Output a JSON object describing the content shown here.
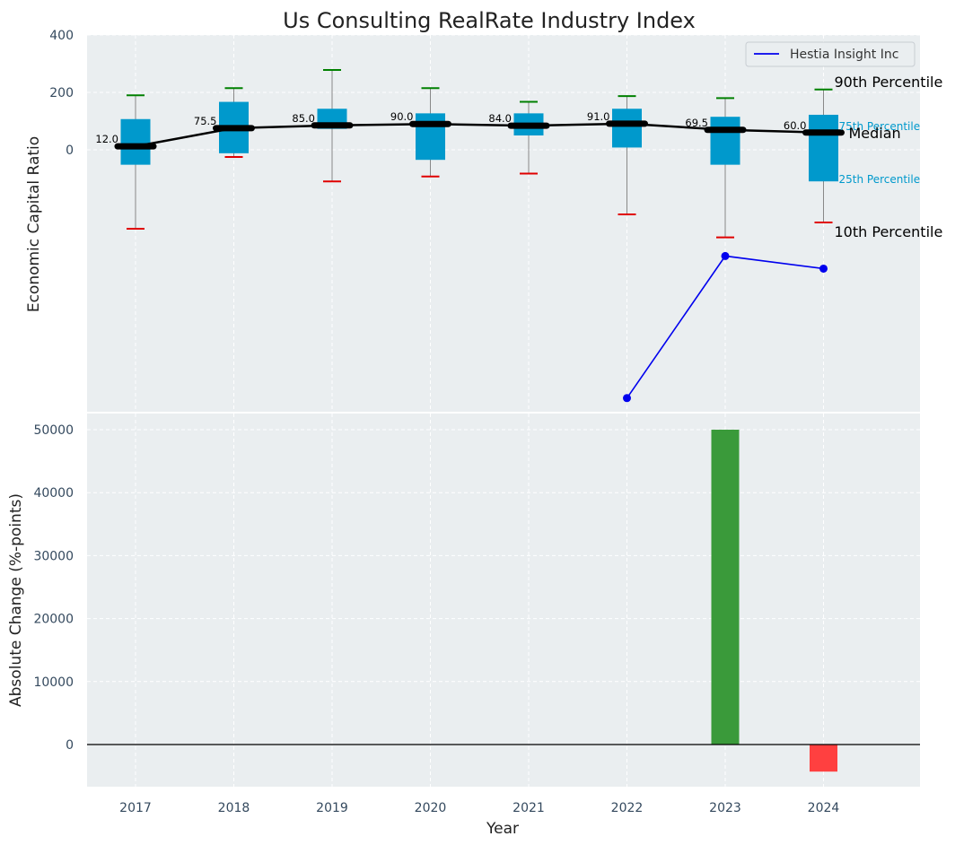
{
  "chart_data": {
    "title": "Us Consulting RealRate Industry Index",
    "xlabel": "Year",
    "categories": [
      "2017",
      "2018",
      "2019",
      "2020",
      "2021",
      "2022",
      "2023",
      "2024"
    ],
    "top_panel": {
      "type": "box",
      "ylabel": "Economic Capital Ratio",
      "yticks": [
        "400",
        "200",
        "0"
      ],
      "grid": true,
      "percentiles": [
        {
          "year": "2017",
          "p10": -275,
          "p25": -52,
          "median": 12.0,
          "p75": 107,
          "p90": 190
        },
        {
          "year": "2018",
          "p10": -25,
          "p25": -12,
          "median": 75.5,
          "p75": 167,
          "p90": 215
        },
        {
          "year": "2019",
          "p10": -110,
          "p25": 73,
          "median": 85.0,
          "p75": 143,
          "p90": 278
        },
        {
          "year": "2020",
          "p10": -93,
          "p25": -35,
          "median": 90.0,
          "p75": 127,
          "p90": 215
        },
        {
          "year": "2021",
          "p10": -83,
          "p25": 50,
          "median": 84.0,
          "p75": 127,
          "p90": 167
        },
        {
          "year": "2022",
          "p10": -225,
          "p25": 8,
          "median": 91.0,
          "p75": 143,
          "p90": 187
        },
        {
          "year": "2023",
          "p10": -305,
          "p25": -52,
          "median": 69.5,
          "p75": 115,
          "p90": 180
        },
        {
          "year": "2024",
          "p10": -253,
          "p25": -110,
          "median": 60.0,
          "p75": 122,
          "p90": 210
        }
      ],
      "median_labels": [
        "12.0",
        "75.5",
        "85.0",
        "90.0",
        "84.0",
        "91.0",
        "69.5",
        "60.0"
      ],
      "annotations": {
        "p90": "90th Percentile",
        "p75": "75th Percentile",
        "median": "Median",
        "p25": "25th Percentile",
        "p10": "10th Percentile"
      },
      "series": [
        {
          "name": "Hestia Insight Inc",
          "x": [
            "2022",
            "2023",
            "2024"
          ],
          "values": [
            -865,
            -370,
            -414
          ]
        }
      ],
      "legend": "top-right"
    },
    "bottom_panel": {
      "type": "bar",
      "ylabel": "Absolute Change (%-points)",
      "yticks": [
        "50000",
        "40000",
        "30000",
        "20000",
        "10000",
        "0"
      ],
      "grid": true,
      "bars": [
        {
          "x": "2023",
          "value": 50000
        },
        {
          "x": "2024",
          "value": -4300
        }
      ]
    },
    "colors": {
      "background": "#eaeef0",
      "box": "#0099cc",
      "whisker": "#888888",
      "p90_cap": "#008000",
      "p10_cap": "#e00000",
      "median_line": "#000000",
      "series_line": "#0000ee",
      "positive_bar": "#3a9a3a",
      "negative_bar": "#ff4040",
      "tick_text": "#34495e"
    }
  }
}
